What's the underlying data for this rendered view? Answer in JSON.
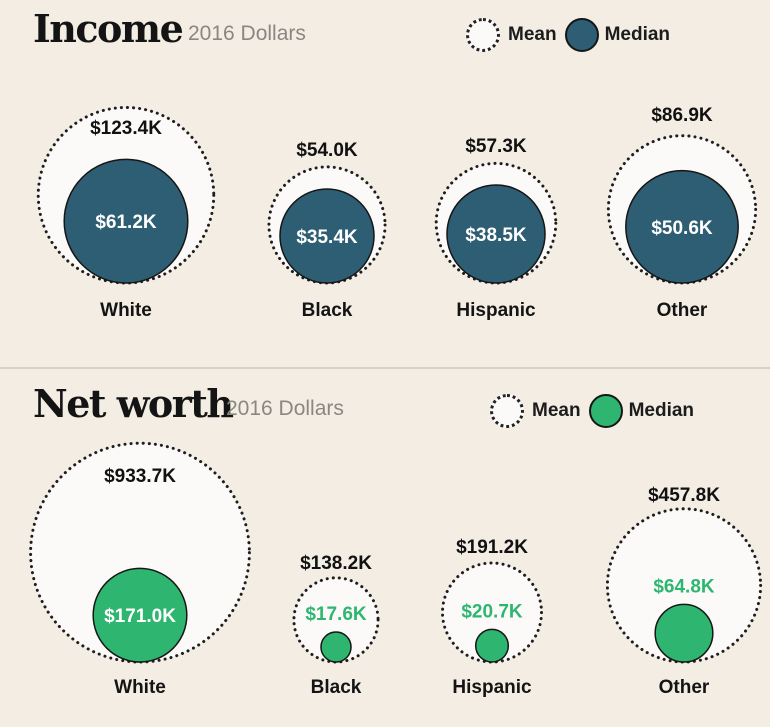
{
  "colors": {
    "income_median": "#2e5e73",
    "networth_median": "#2eb671",
    "mean_fill": "#fbfaf8",
    "mean_stroke": "#1e1e1e"
  },
  "legend": {
    "mean": "Mean",
    "median": "Median"
  },
  "chart_data": [
    {
      "type": "bubble",
      "title": "Income",
      "subtitle": "2016 Dollars",
      "categories": [
        "White",
        "Black",
        "Hispanic",
        "Other"
      ],
      "series": [
        {
          "name": "Mean",
          "values": [
            123.4,
            54.0,
            57.3,
            86.9
          ],
          "labels": [
            "$123.4K",
            "$54.0K",
            "$57.3K",
            "$86.9K"
          ]
        },
        {
          "name": "Median",
          "values": [
            61.2,
            35.4,
            38.5,
            50.6
          ],
          "labels": [
            "$61.2K",
            "$35.4K",
            "$38.5K",
            "$50.6K"
          ]
        }
      ]
    },
    {
      "type": "bubble",
      "title": "Net worth",
      "subtitle": "2016 Dollars",
      "categories": [
        "White",
        "Black",
        "Hispanic",
        "Other"
      ],
      "series": [
        {
          "name": "Mean",
          "values": [
            933.7,
            138.2,
            191.2,
            457.8
          ],
          "labels": [
            "$933.7K",
            "$138.2K",
            "$191.2K",
            "$457.8K"
          ]
        },
        {
          "name": "Median",
          "values": [
            171.0,
            17.6,
            20.7,
            64.8
          ],
          "labels": [
            "$171.0K",
            "$17.6K",
            "$20.7K",
            "$64.8K"
          ]
        }
      ]
    }
  ]
}
